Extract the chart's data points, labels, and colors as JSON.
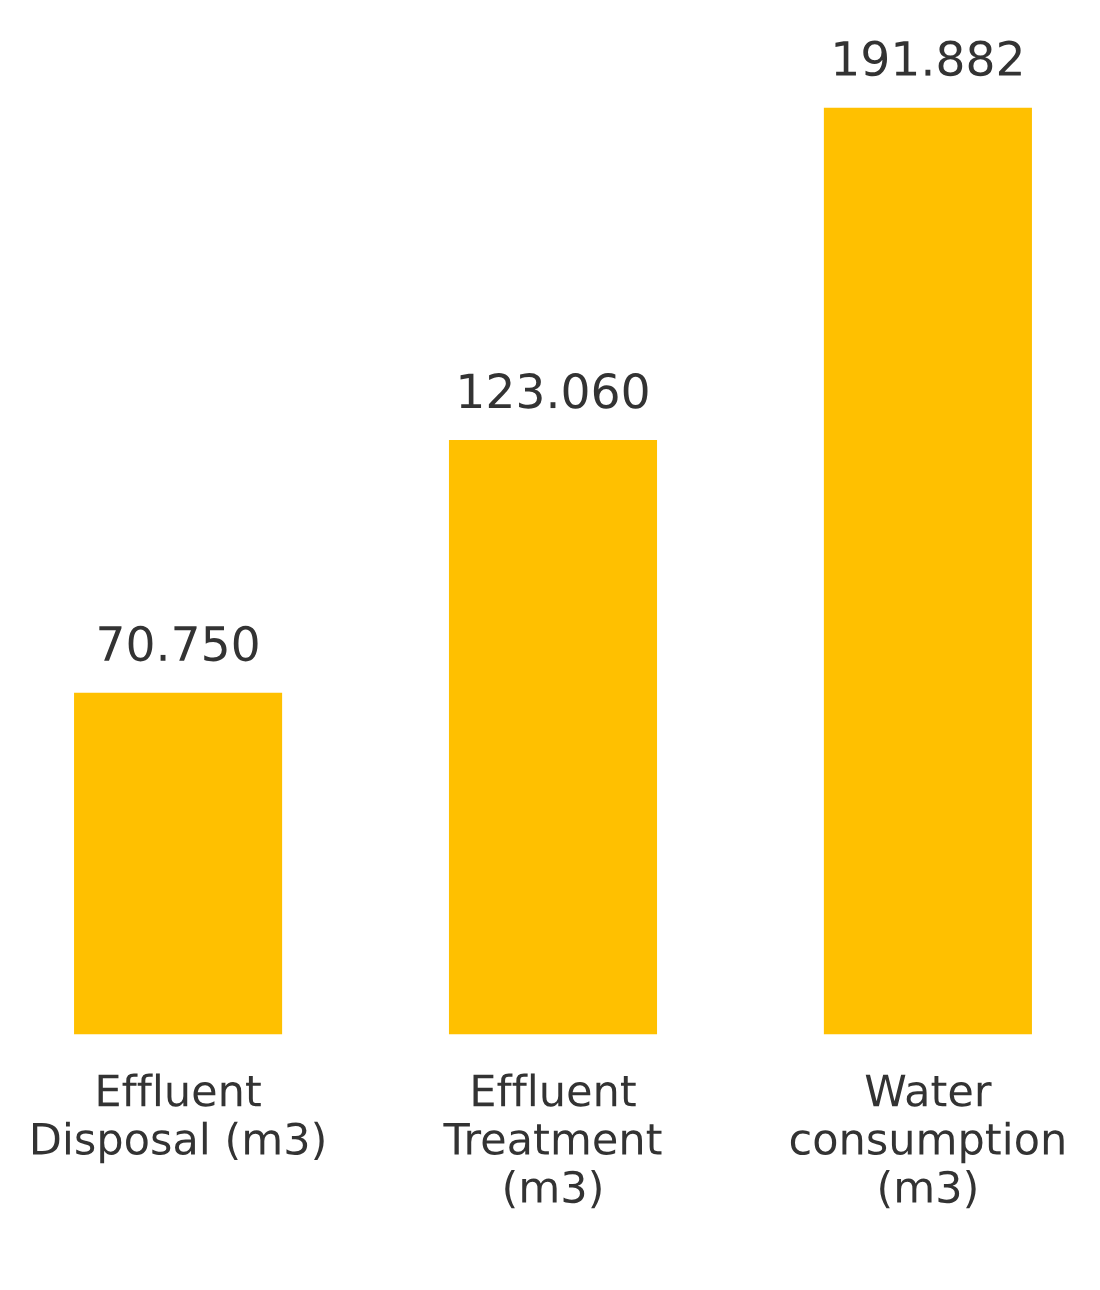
{
  "chart_data": {
    "type": "bar",
    "categories": [
      "Effluent\nDisposal (m3)",
      "Effluent\nTreatment\n(m3)",
      "Water\nconsumption\n(m3)"
    ],
    "values": [
      70750,
      123060,
      191882
    ],
    "value_labels": [
      "70.750",
      "123.060",
      "191.882"
    ],
    "color": "#ffc000",
    "grid": false,
    "legend": false
  }
}
